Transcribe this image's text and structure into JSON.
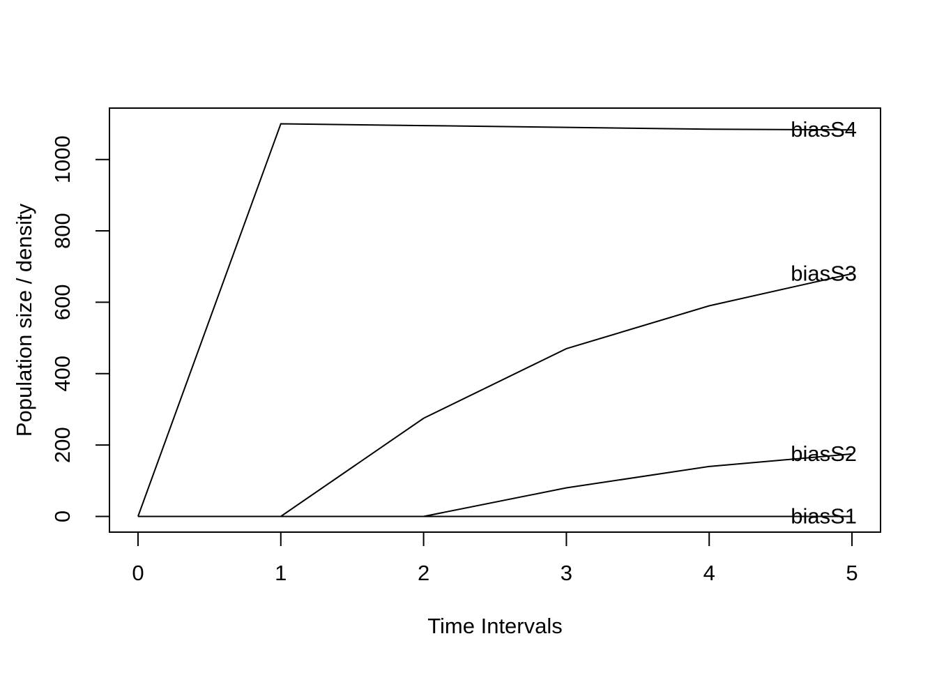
{
  "chart_data": {
    "type": "line",
    "title": "",
    "xlabel": "Time Intervals",
    "ylabel": "Population size / density",
    "x": [
      0,
      1,
      2,
      3,
      4,
      5
    ],
    "xticks": [
      0,
      1,
      2,
      3,
      4,
      5
    ],
    "yticks": [
      0,
      200,
      400,
      600,
      800,
      1000
    ],
    "xlim": [
      0,
      5
    ],
    "ylim": [
      0,
      1100
    ],
    "grid": false,
    "legend_position": "labels-at-line-end",
    "background_color": "#ffffff",
    "line_color": "#000000",
    "series": [
      {
        "name": "biasS1",
        "values": [
          0,
          0,
          0,
          0,
          0,
          0
        ]
      },
      {
        "name": "biasS2",
        "values": [
          0,
          0,
          0,
          80,
          140,
          175
        ]
      },
      {
        "name": "biasS3",
        "values": [
          0,
          0,
          275,
          470,
          590,
          680
        ]
      },
      {
        "name": "biasS4",
        "values": [
          0,
          1100,
          1095,
          1090,
          1085,
          1083
        ]
      }
    ]
  }
}
